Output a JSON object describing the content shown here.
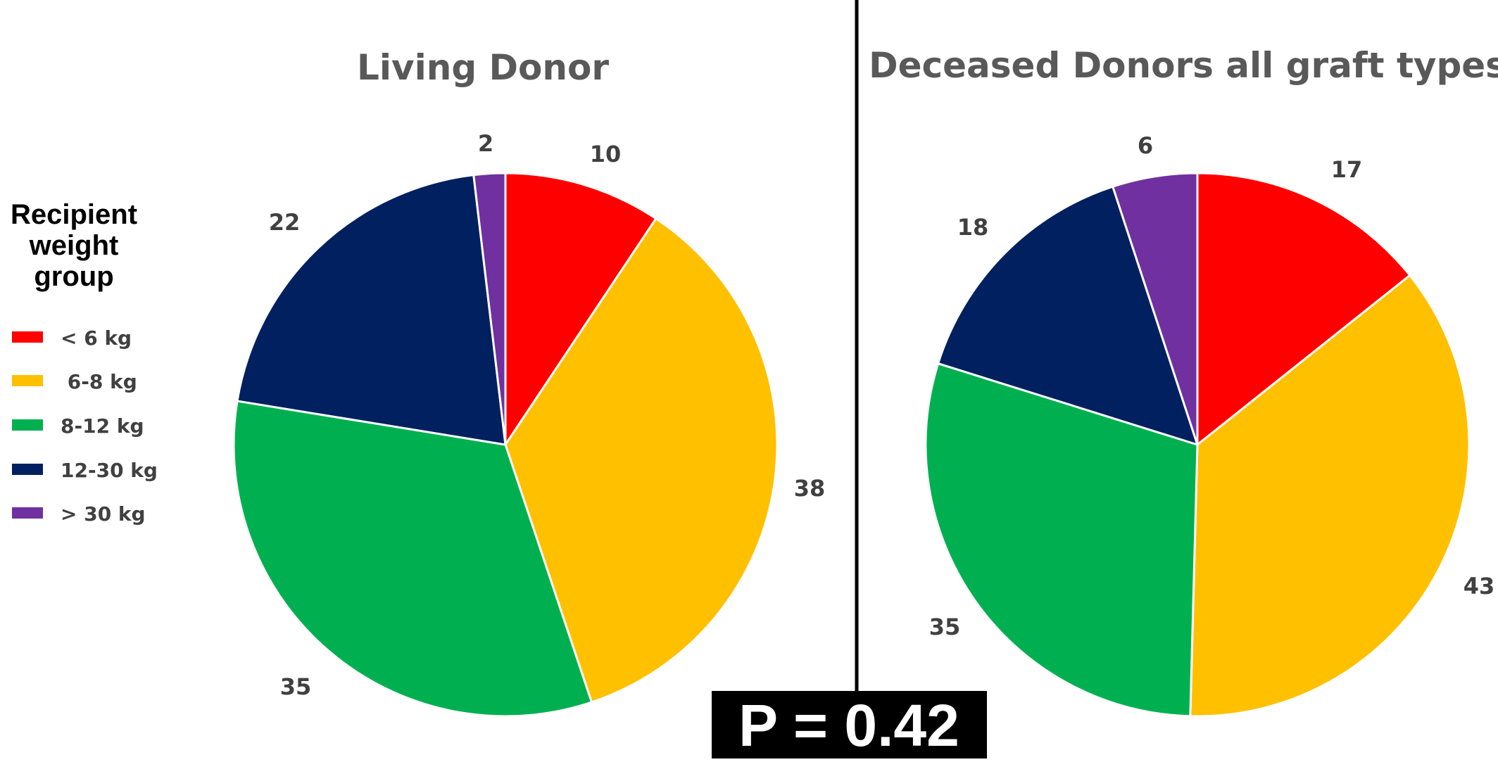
{
  "legend": {
    "title_lines": [
      "Recipient",
      "weight",
      "group"
    ],
    "items": [
      {
        "label": "< 6 kg",
        "color": "#FF0000"
      },
      {
        "label": " 6-8 kg",
        "color": "#FFC000"
      },
      {
        "label": "8-12 kg",
        "color": "#00B050"
      },
      {
        "label": "12-30 kg",
        "color": "#002060"
      },
      {
        "label": "> 30 kg",
        "color": "#7030A0"
      }
    ]
  },
  "p_value": "P = 0.42",
  "chart_data": [
    {
      "type": "pie",
      "title": "Living Donor",
      "categories": [
        "< 6 kg",
        "6-8 kg",
        "8-12 kg",
        "12-30 kg",
        "> 30 kg"
      ],
      "values": [
        10,
        38,
        35,
        22,
        2
      ],
      "colors": [
        "#FF0000",
        "#FFC000",
        "#00B050",
        "#002060",
        "#7030A0"
      ],
      "data_labels": [
        "10",
        "38",
        "35",
        "22",
        "2"
      ]
    },
    {
      "type": "pie",
      "title": "Deceased Donors all graft types",
      "categories": [
        "< 6 kg",
        "6-8 kg",
        "8-12 kg",
        "12-30 kg",
        "> 30 kg"
      ],
      "values": [
        17,
        43,
        35,
        18,
        6
      ],
      "colors": [
        "#FF0000",
        "#FFC000",
        "#00B050",
        "#002060",
        "#7030A0"
      ],
      "data_labels": [
        "17",
        "43",
        "35",
        "18",
        "6"
      ]
    }
  ]
}
